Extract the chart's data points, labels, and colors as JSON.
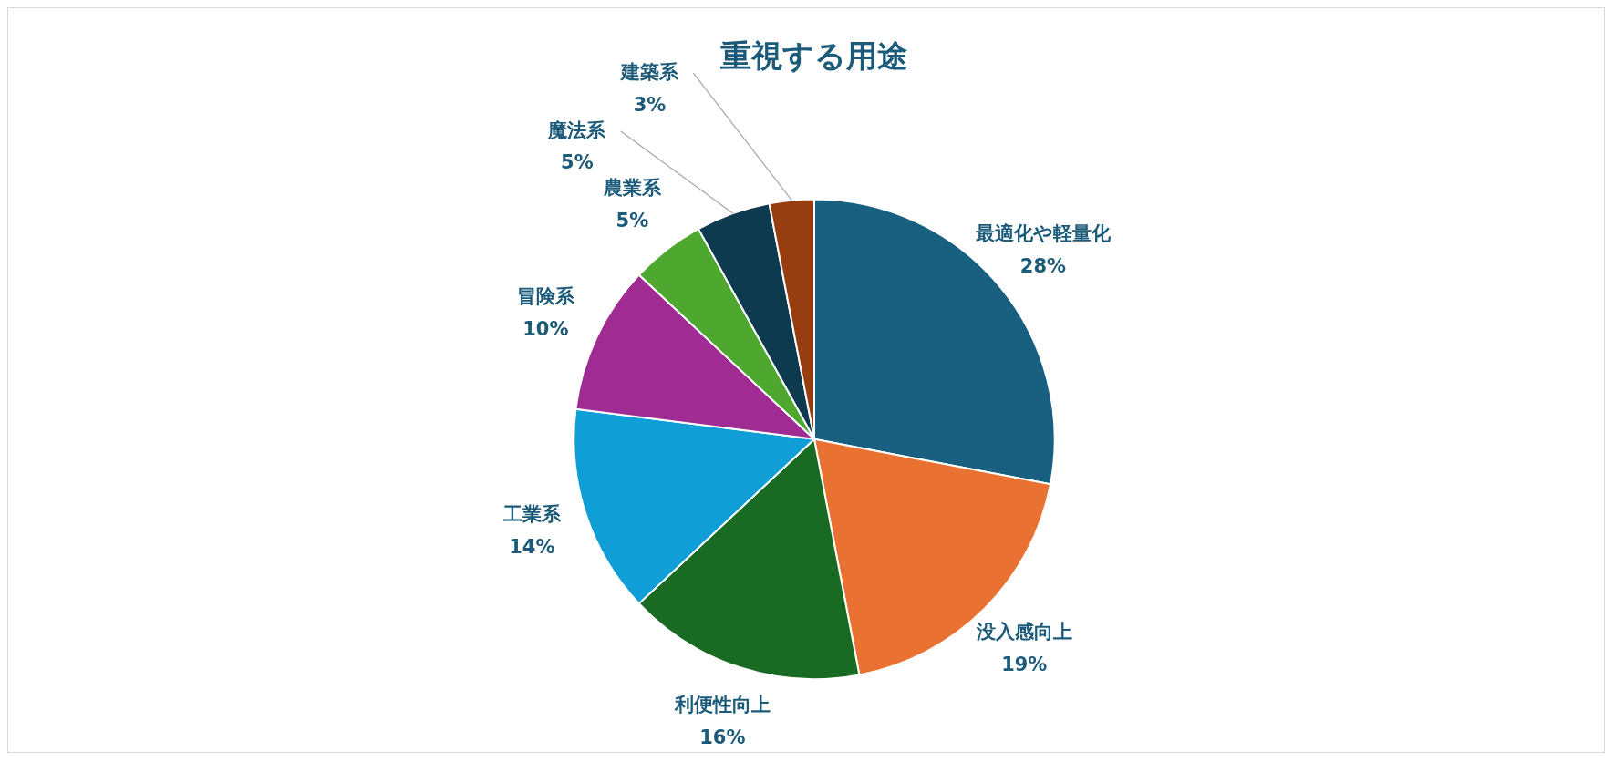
{
  "chart_data": {
    "type": "pie",
    "title": "重視する用途",
    "categories": [
      "最適化や軽量化",
      "没入感向上",
      "利便性向上",
      "工業系",
      "冒険系",
      "農業系",
      "魔法系",
      "建築系"
    ],
    "values": [
      28,
      19,
      16,
      14,
      10,
      5,
      5,
      3
    ],
    "value_labels": [
      "28%",
      "19%",
      "16%",
      "14%",
      "10%",
      "5%",
      "5%",
      "3%"
    ],
    "colors": [
      "#196080",
      "#e97132",
      "#196b24",
      "#0f9ed5",
      "#a02b93",
      "#4ea72e",
      "#0e3a50",
      "#973e10"
    ]
  }
}
